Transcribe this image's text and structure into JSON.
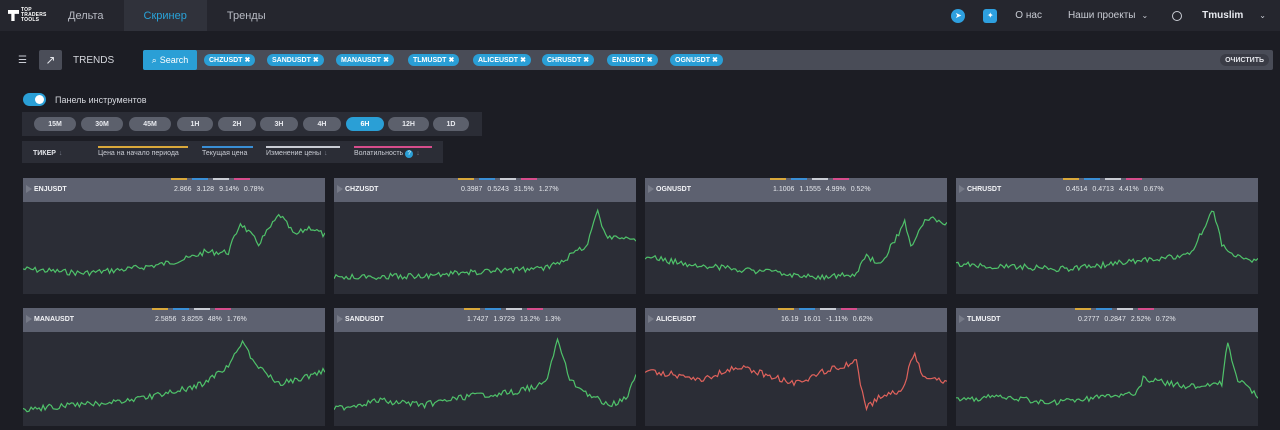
{
  "nav": {
    "logo_lines": [
      "TOP",
      "TRADERS",
      "TOOLS"
    ],
    "tabs": [
      {
        "label": "Дельта",
        "active": false
      },
      {
        "label": "Скринер",
        "active": true
      },
      {
        "label": "Тренды",
        "active": false
      }
    ],
    "about": "О нас",
    "projects": "Наши проекты",
    "user": "Tmuslim",
    "icons": [
      "telegram-icon",
      "twitter-icon",
      "sun-icon",
      "chevron-down-icon"
    ]
  },
  "toolbar": {
    "mode_label": "TRENDS",
    "search_label": "Search",
    "chips": [
      "CHZUSDT",
      "SANDUSDT",
      "MANAUSDT",
      "TLMUSDT",
      "ALICEUSDT",
      "CHRUSDT",
      "ENJUSDT",
      "OGNUSDT"
    ],
    "clear_label": "ОЧИСТИТЬ"
  },
  "panel": {
    "toggle_label": "Панель инструментов",
    "toggle_on": true,
    "intervals": [
      "15M",
      "30M",
      "45M",
      "1H",
      "2H",
      "3H",
      "4H",
      "6H",
      "12H",
      "1D"
    ],
    "active_interval": "6H"
  },
  "sort": {
    "ticker": "ТИКЕР",
    "start_price": "Цена на начало периода",
    "current_price": "Текущая цена",
    "change": "Изменение цены",
    "volatility": "Волатильность",
    "volatility_badge": "?",
    "colors": {
      "start": "#d9a83b",
      "current": "#3a8fd6",
      "change": "#c9ccd4",
      "volatility": "#d64d8c"
    }
  },
  "cards": [
    {
      "ticker": "ENJUSDT",
      "start": "2.866",
      "current": "3.128",
      "change": "9.14%",
      "volatility": "0.78%",
      "trend": "up"
    },
    {
      "ticker": "CHZUSDT",
      "start": "0.3987",
      "current": "0.5243",
      "change": "31.5%",
      "volatility": "1.27%",
      "trend": "up"
    },
    {
      "ticker": "OGNUSDT",
      "start": "1.1006",
      "current": "1.1555",
      "change": "4.99%",
      "volatility": "0.52%",
      "trend": "up"
    },
    {
      "ticker": "CHRUSDT",
      "start": "0.4514",
      "current": "0.4713",
      "change": "4.41%",
      "volatility": "0.67%",
      "trend": "up"
    },
    {
      "ticker": "MANAUSDT",
      "start": "2.5856",
      "current": "3.8255",
      "change": "48%",
      "volatility": "1.76%",
      "trend": "up"
    },
    {
      "ticker": "SANDUSDT",
      "start": "1.7427",
      "current": "1.9729",
      "change": "13.2%",
      "volatility": "1.3%",
      "trend": "up"
    },
    {
      "ticker": "ALICEUSDT",
      "start": "16.19",
      "current": "16.01",
      "change": "-1.11%",
      "volatility": "0.62%",
      "trend": "down"
    },
    {
      "ticker": "TLMUSDT",
      "start": "0.2777",
      "current": "0.2847",
      "change": "2.52%",
      "volatility": "0.72%",
      "trend": "up"
    }
  ],
  "line_colors": {
    "up": "#4fc26a",
    "down": "#e0625c"
  }
}
